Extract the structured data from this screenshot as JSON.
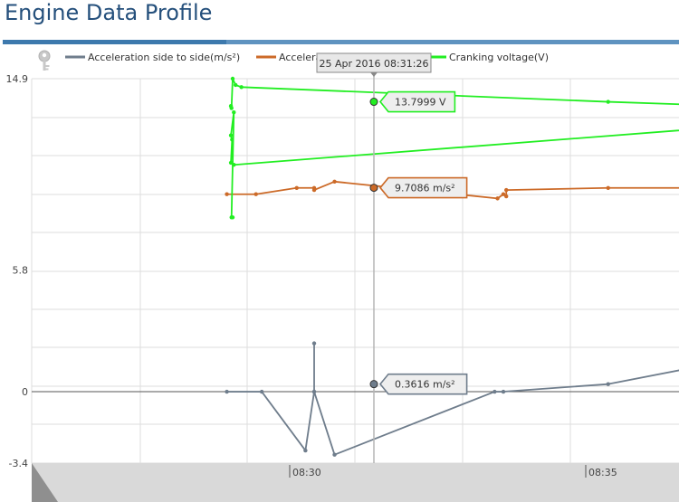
{
  "page": {
    "title": "Engine Data Profile"
  },
  "colors": {
    "accent": "#3d79ad",
    "grey_series": "#6f7d8c",
    "orange_series": "#cc6a28",
    "green_series": "#22ee22"
  },
  "toolbar": {
    "icon": "key-icon"
  },
  "legend": [
    {
      "name": "Acceleration side to side(m/s²)",
      "color": "#6f7d8c"
    },
    {
      "name": "Accelera",
      "color": "#cc6a28"
    },
    {
      "name": "Cranking voltage(V)",
      "color": "#22ee22"
    }
  ],
  "crosshair": {
    "time_label": "25 Apr 2016 08:31:26",
    "tooltips": [
      {
        "series": "Cranking voltage(V)",
        "text": "13.7999 V",
        "value": 13.7999
      },
      {
        "series": "Accelera",
        "text": "9.7086 m/s²",
        "value": 9.7086
      },
      {
        "series": "Acceleration side to side(m/s²)",
        "text": "0.3616 m/s²",
        "value": 0.3616
      }
    ]
  },
  "chart_data": {
    "type": "line",
    "y_ticks": [
      "14.9",
      "5.8",
      "0",
      "-3.4"
    ],
    "x_ticks": [
      "08:30",
      "08:35"
    ],
    "ylim": [
      -3.4,
      14.9
    ],
    "series": [
      {
        "name": "Cranking voltage(V)",
        "color": "#22ee22",
        "points": [
          [
            -0.03,
            13.6
          ],
          [
            -0.02,
            13.5
          ],
          [
            0.0,
            14.9
          ],
          [
            0.05,
            14.6
          ],
          [
            0.15,
            14.5
          ],
          [
            6.45,
            13.8
          ],
          [
            11.7,
            13.3
          ],
          [
            0.02,
            10.8
          ],
          [
            -0.03,
            10.9
          ],
          [
            -0.01,
            12.0
          ],
          [
            -0.03,
            12.2
          ],
          [
            0.02,
            13.3
          ],
          [
            -0.02,
            8.3
          ],
          [
            0.0,
            8.3
          ]
        ]
      },
      {
        "name": "Accelera",
        "color": "#cc6a28",
        "points": [
          [
            -0.1,
            9.4
          ],
          [
            0.4,
            9.4
          ],
          [
            1.1,
            9.7
          ],
          [
            1.4,
            9.7
          ],
          [
            1.4,
            9.6
          ],
          [
            1.75,
            10.0
          ],
          [
            4.55,
            9.2
          ],
          [
            4.65,
            9.4
          ],
          [
            4.7,
            9.3
          ],
          [
            4.7,
            9.6
          ],
          [
            6.45,
            9.7
          ],
          [
            10.95,
            9.7
          ],
          [
            11.1,
            9.75
          ],
          [
            11.15,
            9.9
          ],
          [
            11.18,
            10.1
          ],
          [
            11.2,
            11.2
          ],
          [
            11.25,
            9.8
          ],
          [
            11.2,
            9.2
          ],
          [
            11.2,
            9.0
          ],
          [
            11.45,
            10.8
          ]
        ]
      },
      {
        "name": "Acceleration side to side(m/s²)",
        "color": "#6f7d8c",
        "points": [
          [
            -0.1,
            0.0
          ],
          [
            0.5,
            0.0
          ],
          [
            1.25,
            -2.8
          ],
          [
            1.4,
            0.0
          ],
          [
            1.4,
            2.3
          ],
          [
            1.4,
            0.0
          ],
          [
            1.75,
            -3.0
          ],
          [
            4.5,
            0.0
          ],
          [
            4.65,
            0.0
          ],
          [
            6.45,
            0.36
          ],
          [
            10.8,
            2.7
          ],
          [
            10.9,
            0.0
          ],
          [
            11.15,
            0.0
          ],
          [
            11.15,
            -2.8
          ],
          [
            11.2,
            -2.8
          ],
          [
            11.2,
            -2.0
          ],
          [
            11.2,
            -4.2
          ],
          [
            11.45,
            -2.0
          ]
        ]
      }
    ]
  }
}
